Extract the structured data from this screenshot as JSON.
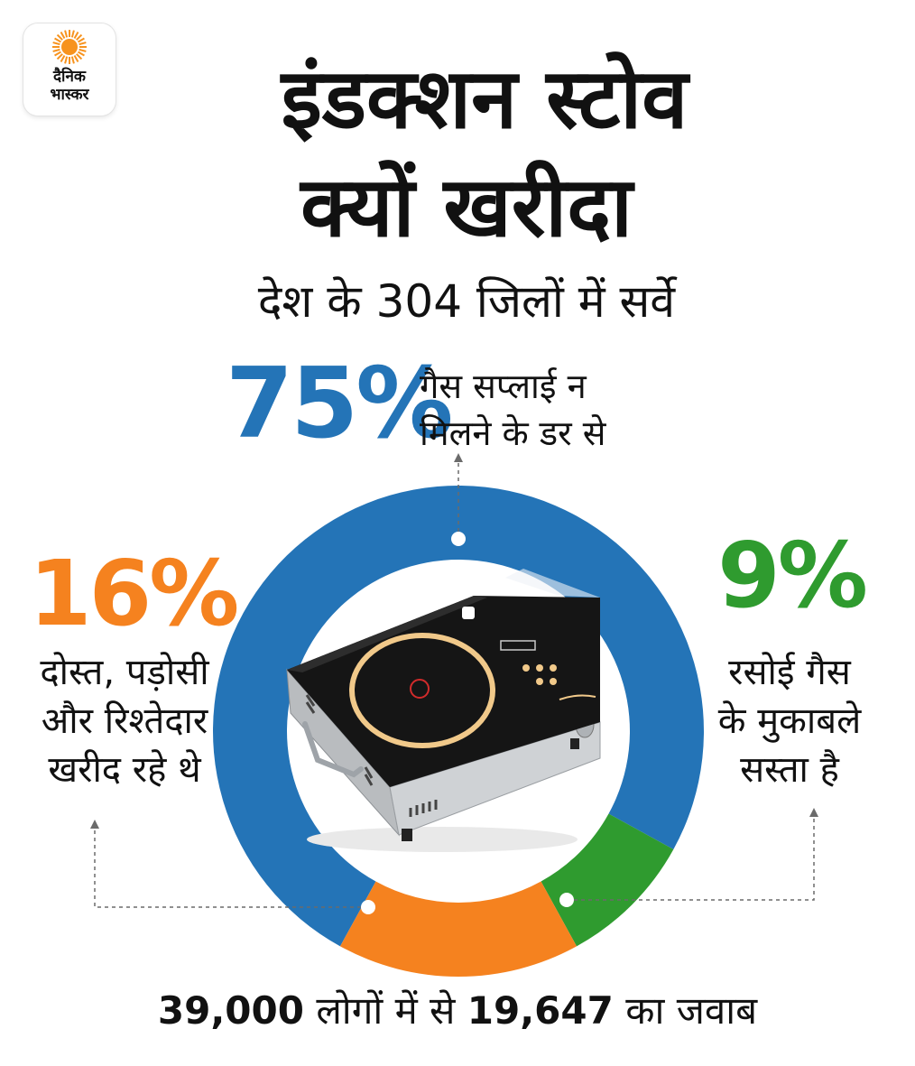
{
  "logo": {
    "line1": "दैनिक",
    "line2": "भास्कर",
    "sun_color": "#f7931e"
  },
  "title": {
    "line1": "इंडक्शन स्टोव",
    "line2": "क्यों खरीदा"
  },
  "subtitle": "देश के 304 जिलों में सर्वे",
  "callouts": {
    "gas": {
      "value": "75%",
      "line1": "गैस सप्लाई न",
      "line2": "मिलने के डर से"
    },
    "friends": {
      "value": "16%",
      "line1": "दोस्त, पड़ोसी",
      "line2": "और रिश्तेदार",
      "line3": "खरीद रहे थे"
    },
    "cheap": {
      "value": "9%",
      "line1": "रसोई गैस",
      "line2": "के मुकाबले",
      "line3": "सस्ता है"
    }
  },
  "footer": {
    "part1": "39,000",
    "part2": " लोगों में से ",
    "part3": "19,647",
    "part4": " का जवाब"
  },
  "icons": {
    "product_image": "induction-stove-icon"
  },
  "chart_data": {
    "type": "pie",
    "variant": "donut",
    "categories": [
      "गैस सप्लाई न मिलने के डर से",
      "रसोई गैस के मुकाबले सस्ता है",
      "दोस्त, पड़ोसी और रिश्तेदार खरीद रहे थे"
    ],
    "values": [
      75,
      9,
      16
    ],
    "unit": "%",
    "colors": [
      "#2474b7",
      "#2f9b2f",
      "#f5821f"
    ]
  }
}
